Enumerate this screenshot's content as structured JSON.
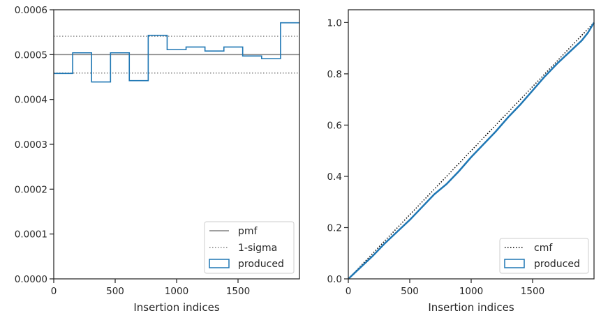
{
  "chart_data": [
    {
      "type": "step",
      "xlabel": "Insertion indices",
      "ylabel": "",
      "xlim": [
        0,
        2000
      ],
      "ylim": [
        0,
        0.0006
      ],
      "xticks": [
        0,
        500,
        1000,
        1500
      ],
      "yticks": [
        0.0,
        0.0001,
        0.0002,
        0.0003,
        0.0004,
        0.0005,
        0.0006
      ],
      "ytick_labels": [
        "0.0000",
        "0.0001",
        "0.0002",
        "0.0003",
        "0.0004",
        "0.0005",
        "0.0006"
      ],
      "reference_lines": [
        {
          "name": "pmf",
          "y": 0.0005,
          "style": "solid",
          "color": "#808080"
        },
        {
          "name": "1-sigma",
          "y": 0.000541,
          "style": "dotted",
          "color": "#808080"
        },
        {
          "name": "1-sigma",
          "y": 0.000459,
          "style": "dotted",
          "color": "#808080"
        }
      ],
      "series": [
        {
          "name": "produced",
          "color": "#1f77b4",
          "bin_edges": [
            0,
            154,
            308,
            462,
            615,
            769,
            923,
            1077,
            1231,
            1385,
            1538,
            1692,
            1846,
            2000
          ],
          "values": [
            0.000458,
            0.000504,
            0.000439,
            0.000504,
            0.000442,
            0.000543,
            0.000511,
            0.000517,
            0.000508,
            0.000517,
            0.000497,
            0.000491,
            0.000571
          ]
        }
      ],
      "legend": {
        "position": "lower-right",
        "entries": [
          {
            "label": "pmf",
            "style": "solid",
            "color": "#808080"
          },
          {
            "label": "1-sigma",
            "style": "dotted",
            "color": "#808080"
          },
          {
            "label": "produced",
            "style": "box",
            "color": "#1f77b4"
          }
        ]
      },
      "grid": false
    },
    {
      "type": "line",
      "xlabel": "Insertion indices",
      "ylabel": "",
      "xlim": [
        0,
        2000
      ],
      "ylim": [
        0,
        1.05
      ],
      "xticks": [
        0,
        500,
        1000,
        1500
      ],
      "yticks": [
        0.0,
        0.2,
        0.4,
        0.6,
        0.8,
        1.0
      ],
      "ytick_labels": [
        "0.0",
        "0.2",
        "0.4",
        "0.6",
        "0.8",
        "1.0"
      ],
      "series": [
        {
          "name": "cmf",
          "style": "dotted",
          "color": "#000000",
          "x": [
            0,
            2000
          ],
          "y": [
            0,
            1.0
          ]
        },
        {
          "name": "produced",
          "style": "solid",
          "color": "#1f77b4",
          "x": [
            0,
            100,
            200,
            300,
            400,
            500,
            600,
            700,
            800,
            900,
            1000,
            1100,
            1200,
            1300,
            1400,
            1500,
            1600,
            1700,
            1800,
            1900,
            1950,
            2000
          ],
          "y": [
            0,
            0.045,
            0.09,
            0.14,
            0.185,
            0.23,
            0.28,
            0.33,
            0.37,
            0.42,
            0.475,
            0.525,
            0.575,
            0.63,
            0.68,
            0.735,
            0.79,
            0.84,
            0.885,
            0.93,
            0.96,
            1.0
          ]
        }
      ],
      "legend": {
        "position": "lower-right",
        "entries": [
          {
            "label": "cmf",
            "style": "dotted",
            "color": "#000000"
          },
          {
            "label": "produced",
            "style": "box",
            "color": "#1f77b4"
          }
        ]
      },
      "grid": false
    }
  ]
}
